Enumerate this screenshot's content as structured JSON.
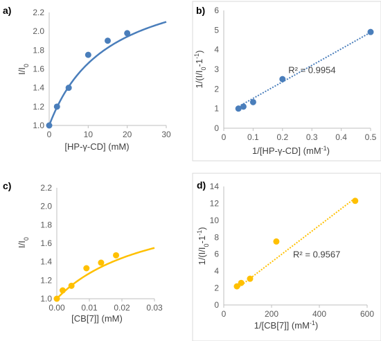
{
  "chart_data": [
    {
      "id": "a",
      "panel_label": "a)",
      "type": "scatter",
      "framed": false,
      "color": "#4a7ebb",
      "xlabel_parts": [
        {
          "t": "[HP-γ-CD] (mM)"
        }
      ],
      "ylabel_parts": [
        {
          "t": "I/I"
        },
        {
          "t": "0",
          "sub": true
        }
      ],
      "xlim": [
        0,
        30
      ],
      "ylim": [
        1.0,
        2.2
      ],
      "xticks": [
        0,
        10,
        20,
        30
      ],
      "xtick_labels": [
        "0",
        "10",
        "20",
        "30"
      ],
      "yticks": [
        1.0,
        1.2,
        1.4,
        1.6,
        1.8,
        2.0,
        2.2
      ],
      "ytick_labels": [
        "1.0",
        "1.2",
        "1.4",
        "1.6",
        "1.8",
        "2.0",
        "2.2"
      ],
      "points": [
        [
          0,
          1.0
        ],
        [
          2,
          1.2
        ],
        [
          5,
          1.4
        ],
        [
          10,
          1.75
        ],
        [
          15,
          1.9
        ],
        [
          20,
          1.98
        ]
      ],
      "fit": {
        "kind": "binding",
        "amax": 1.65,
        "k": 15,
        "style": "solid",
        "x_range": [
          0,
          30
        ]
      },
      "r2_text": ""
    },
    {
      "id": "b",
      "panel_label": "b)",
      "type": "scatter",
      "framed": true,
      "color": "#4a7ebb",
      "xlabel_parts": [
        {
          "t": "1/[HP-γ-CD] (mM"
        },
        {
          "t": "-1",
          "sup": true
        },
        {
          "t": ")"
        }
      ],
      "ylabel_parts": [
        {
          "t": "1/(I/I"
        },
        {
          "t": "0",
          "sub": true
        },
        {
          "t": "-1"
        },
        {
          "t": "-1",
          "sup": true
        },
        {
          "t": ")"
        }
      ],
      "xlim": [
        0,
        0.5
      ],
      "ylim": [
        0,
        6
      ],
      "xticks": [
        0,
        0.1,
        0.2,
        0.3,
        0.4,
        0.5
      ],
      "xtick_labels": [
        "0",
        "0.1",
        "0.2",
        "0.3",
        "0.4",
        "0.5"
      ],
      "yticks": [
        0,
        1,
        2,
        3,
        4,
        5,
        6
      ],
      "ytick_labels": [
        "0",
        "1",
        "2",
        "3",
        "4",
        "5",
        "6"
      ],
      "points": [
        [
          0.05,
          1.0
        ],
        [
          0.067,
          1.1
        ],
        [
          0.1,
          1.33
        ],
        [
          0.2,
          2.5
        ],
        [
          0.5,
          4.9
        ]
      ],
      "fit": {
        "kind": "linear",
        "slope": 8.4,
        "intercept": 0.68,
        "style": "dotted",
        "x_range": [
          0.05,
          0.5
        ]
      },
      "r2_text": "R² = 0.9954",
      "r2_pos": [
        0.22,
        2.8
      ]
    },
    {
      "id": "c",
      "panel_label": "c)",
      "type": "scatter",
      "framed": false,
      "color": "#ffc000",
      "xlabel_parts": [
        {
          "t": "[CB[7]] (mM)"
        }
      ],
      "ylabel_parts": [
        {
          "t": "I/I"
        },
        {
          "t": "0",
          "sub": true
        }
      ],
      "xlim": [
        0,
        0.03
      ],
      "ylim": [
        1.0,
        2.2
      ],
      "xticks": [
        0,
        0.01,
        0.02,
        0.03
      ],
      "xtick_labels": [
        "0.00",
        "0.01",
        "0.02",
        "0.03"
      ],
      "yticks": [
        1.0,
        1.2,
        1.4,
        1.6,
        1.8,
        2.0,
        2.2
      ],
      "ytick_labels": [
        "1.0",
        "1.2",
        "1.4",
        "1.6",
        "1.8",
        "2.0",
        "2.2"
      ],
      "points": [
        [
          0,
          1.0
        ],
        [
          0.0018,
          1.09
        ],
        [
          0.0045,
          1.14
        ],
        [
          0.0091,
          1.33
        ],
        [
          0.0136,
          1.39
        ],
        [
          0.0182,
          1.47
        ]
      ],
      "fit": {
        "kind": "binding",
        "amax": 1.1,
        "k": 0.03,
        "style": "solid",
        "x_range": [
          0,
          0.03
        ]
      },
      "r2_text": ""
    },
    {
      "id": "d",
      "panel_label": "d)",
      "type": "scatter",
      "framed": true,
      "color": "#ffc000",
      "xlabel_parts": [
        {
          "t": "1/[CB[7]] (mM"
        },
        {
          "t": "-1",
          "sup": true
        },
        {
          "t": ")"
        }
      ],
      "ylabel_parts": [
        {
          "t": "1/(I/I"
        },
        {
          "t": "0",
          "sub": true
        },
        {
          "t": "-1"
        },
        {
          "t": "-1",
          "sup": true
        },
        {
          "t": ")"
        }
      ],
      "xlim": [
        0,
        600
      ],
      "ylim": [
        0,
        14
      ],
      "xticks": [
        0,
        200,
        400,
        600
      ],
      "xtick_labels": [
        "0",
        "200",
        "400",
        "600"
      ],
      "yticks": [
        0,
        2,
        4,
        6,
        8,
        10,
        12,
        14
      ],
      "ytick_labels": [
        "0",
        "2",
        "4",
        "6",
        "8",
        "10",
        "12",
        "14"
      ],
      "points": [
        [
          55,
          2.2
        ],
        [
          73,
          2.6
        ],
        [
          110,
          3.1
        ],
        [
          220,
          7.5
        ],
        [
          550,
          12.3
        ]
      ],
      "fit": {
        "kind": "linear",
        "slope": 0.0216,
        "intercept": 0.75,
        "style": "dotted",
        "x_range": [
          55,
          550
        ]
      },
      "r2_text": "R² = 0.9567",
      "r2_pos": [
        290,
        5.6
      ]
    }
  ]
}
